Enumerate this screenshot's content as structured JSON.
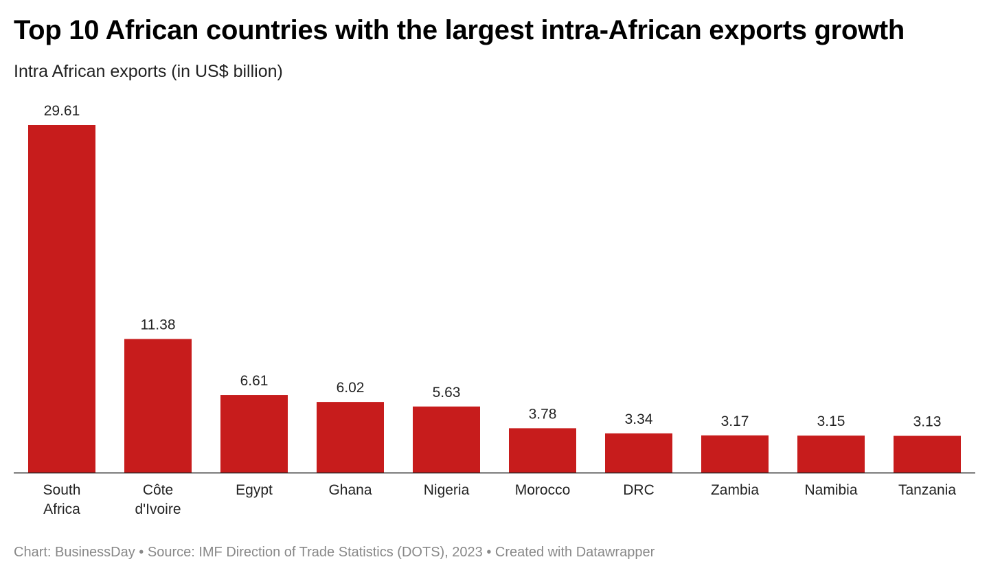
{
  "title": "Top 10 African countries with the largest intra-African exports growth",
  "subtitle": "Intra African exports (in US$ billion)",
  "footer": "Chart: BusinessDay • Source: IMF Direction of Trade Statistics (DOTS), 2023 • Created with Datawrapper",
  "chart_data": {
    "type": "bar",
    "title": "Top 10 African countries with the largest intra-African exports growth",
    "subtitle": "Intra African exports (in US$ billion)",
    "categories": [
      "South Africa",
      "Côte d'Ivoire",
      "Egypt",
      "Ghana",
      "Nigeria",
      "Morocco",
      "DRC",
      "Zambia",
      "Namibia",
      "Tanzania"
    ],
    "category_lines": [
      [
        "South",
        "Africa"
      ],
      [
        "Côte",
        "d'Ivoire"
      ],
      [
        "Egypt"
      ],
      [
        "Ghana"
      ],
      [
        "Nigeria"
      ],
      [
        "Morocco"
      ],
      [
        "DRC"
      ],
      [
        "Zambia"
      ],
      [
        "Namibia"
      ],
      [
        "Tanzania"
      ]
    ],
    "values": [
      29.61,
      11.38,
      6.61,
      6.02,
      5.63,
      3.78,
      3.34,
      3.17,
      3.15,
      3.13
    ],
    "value_labels": [
      "29.61",
      "11.38",
      "6.61",
      "6.02",
      "5.63",
      "3.78",
      "3.34",
      "3.17",
      "3.15",
      "3.13"
    ],
    "ylim": [
      0,
      29.61
    ],
    "grid": false,
    "legend": "none",
    "bar_color": "#c71c1c"
  }
}
